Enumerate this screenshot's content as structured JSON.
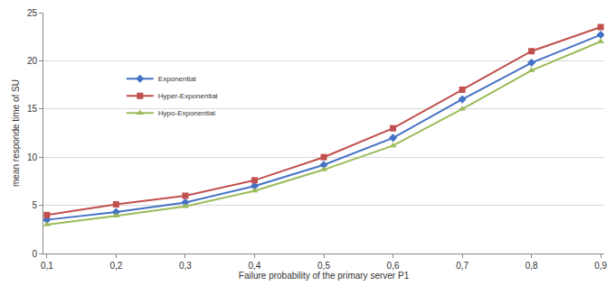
{
  "chart_data": {
    "type": "line",
    "x_label": "Failure probability of the primary server P1",
    "y_label": "mean responde time of SU",
    "categories": [
      "0,1",
      "0,2",
      "0,3",
      "0,4",
      "0,5",
      "0,6",
      "0,7",
      "0,8",
      "0,9"
    ],
    "series": [
      {
        "name": "Exponential",
        "color": "#4472c4",
        "marker": "diamond",
        "values": [
          3.5,
          4.3,
          5.3,
          7.0,
          9.2,
          12.0,
          16.0,
          19.8,
          22.7
        ]
      },
      {
        "name": "Hyper-Exponential",
        "color": "#c0504d",
        "marker": "square",
        "values": [
          4.0,
          5.1,
          6.0,
          7.6,
          10.0,
          13.0,
          17.0,
          21.0,
          23.5
        ]
      },
      {
        "name": "Hypo-Exponential",
        "color": "#9bbb59",
        "marker": "triangle-up",
        "values": [
          3.0,
          3.9,
          4.9,
          6.5,
          8.7,
          11.2,
          15.0,
          19.0,
          22.0
        ]
      }
    ],
    "ylim": [
      0,
      25
    ],
    "yticks": [
      0,
      5,
      10,
      15,
      20,
      25
    ],
    "grid": true,
    "legend": "upper left"
  }
}
